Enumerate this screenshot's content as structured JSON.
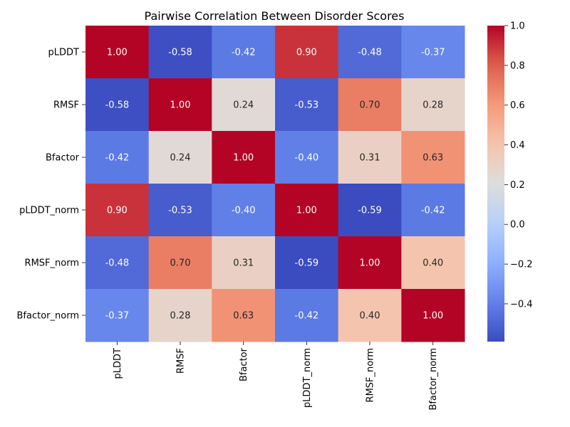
{
  "chart_data": {
    "type": "heatmap",
    "title": "Pairwise Correlation Between Disorder Scores",
    "row_labels": [
      "pLDDT",
      "RMSF",
      "Bfactor",
      "pLDDT_norm",
      "RMSF_norm",
      "Bfactor_norm"
    ],
    "col_labels": [
      "pLDDT",
      "RMSF",
      "Bfactor",
      "pLDDT_norm",
      "RMSF_norm",
      "Bfactor_norm"
    ],
    "values": [
      [
        1.0,
        -0.58,
        -0.42,
        0.9,
        -0.48,
        -0.37
      ],
      [
        -0.58,
        1.0,
        0.24,
        -0.53,
        0.7,
        0.28
      ],
      [
        -0.42,
        0.24,
        1.0,
        -0.4,
        0.31,
        0.63
      ],
      [
        0.9,
        -0.53,
        -0.4,
        1.0,
        -0.59,
        -0.42
      ],
      [
        -0.48,
        0.7,
        0.31,
        -0.59,
        1.0,
        0.4
      ],
      [
        -0.37,
        0.28,
        0.63,
        -0.42,
        0.4,
        1.0
      ]
    ],
    "value_labels": [
      [
        "1.00",
        "-0.58",
        "-0.42",
        "0.90",
        "-0.48",
        "-0.37"
      ],
      [
        "-0.58",
        "1.00",
        "0.24",
        "-0.53",
        "0.70",
        "0.28"
      ],
      [
        "-0.42",
        "0.24",
        "1.00",
        "-0.40",
        "0.31",
        "0.63"
      ],
      [
        "0.90",
        "-0.53",
        "-0.40",
        "1.00",
        "-0.59",
        "-0.42"
      ],
      [
        "-0.48",
        "0.70",
        "0.31",
        "-0.59",
        "1.00",
        "0.40"
      ],
      [
        "-0.37",
        "0.28",
        "0.63",
        "-0.42",
        "0.40",
        "1.00"
      ]
    ],
    "colormap": "coolwarm",
    "colorbar": {
      "range": [
        -0.59,
        1.0
      ],
      "ticks": [
        -0.4,
        -0.2,
        0.0,
        0.2,
        0.4,
        0.6,
        0.8,
        1.0
      ],
      "tick_labels": [
        "−0.4",
        "−0.2",
        "0.0",
        "0.2",
        "0.4",
        "0.6",
        "0.8",
        "1.0"
      ]
    },
    "xlabel": "",
    "ylabel": ""
  }
}
